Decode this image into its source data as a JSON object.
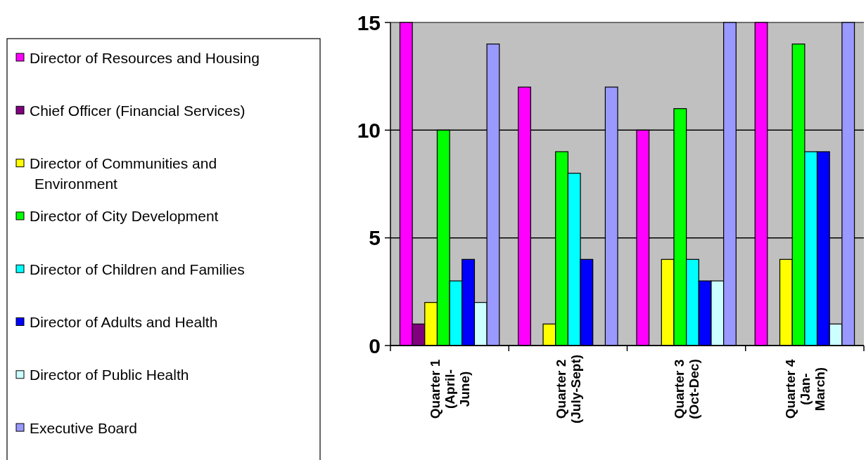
{
  "chart_data": {
    "type": "bar",
    "categories": [
      "Quarter 1\n(April-\nJune)",
      "Quarter 2\n(July-Sept)",
      "Quarter 3\n(Oct-Dec)",
      "Quarter 4\n(Jan-\nMarch)"
    ],
    "series": [
      {
        "name": "Director of Resources and Housing",
        "color": "#ff00ff",
        "values": [
          15,
          12,
          10,
          15
        ]
      },
      {
        "name": "Chief Officer (Financial Services)",
        "color": "#800080",
        "values": [
          1,
          0,
          0,
          0
        ]
      },
      {
        "name": "Director of Communities and Environment",
        "color": "#ffff00",
        "values": [
          2,
          1,
          4,
          4
        ]
      },
      {
        "name": "Director of City Development",
        "color": "#00ff00",
        "values": [
          10,
          9,
          11,
          14
        ]
      },
      {
        "name": "Director of Children and Families",
        "color": "#00ffff",
        "values": [
          3,
          8,
          4,
          9
        ]
      },
      {
        "name": "Director of Adults and Health",
        "color": "#0000ff",
        "values": [
          4,
          4,
          3,
          9
        ]
      },
      {
        "name": "Director of Public Health",
        "color": "#ccffff",
        "values": [
          2,
          0,
          3,
          1
        ]
      },
      {
        "name": "Executive Board",
        "color": "#9999ff",
        "values": [
          14,
          12,
          15,
          15
        ]
      }
    ],
    "ylim": [
      0,
      15
    ],
    "yticks": [
      0,
      5,
      10,
      15
    ],
    "grid": "y",
    "legend": "left"
  }
}
